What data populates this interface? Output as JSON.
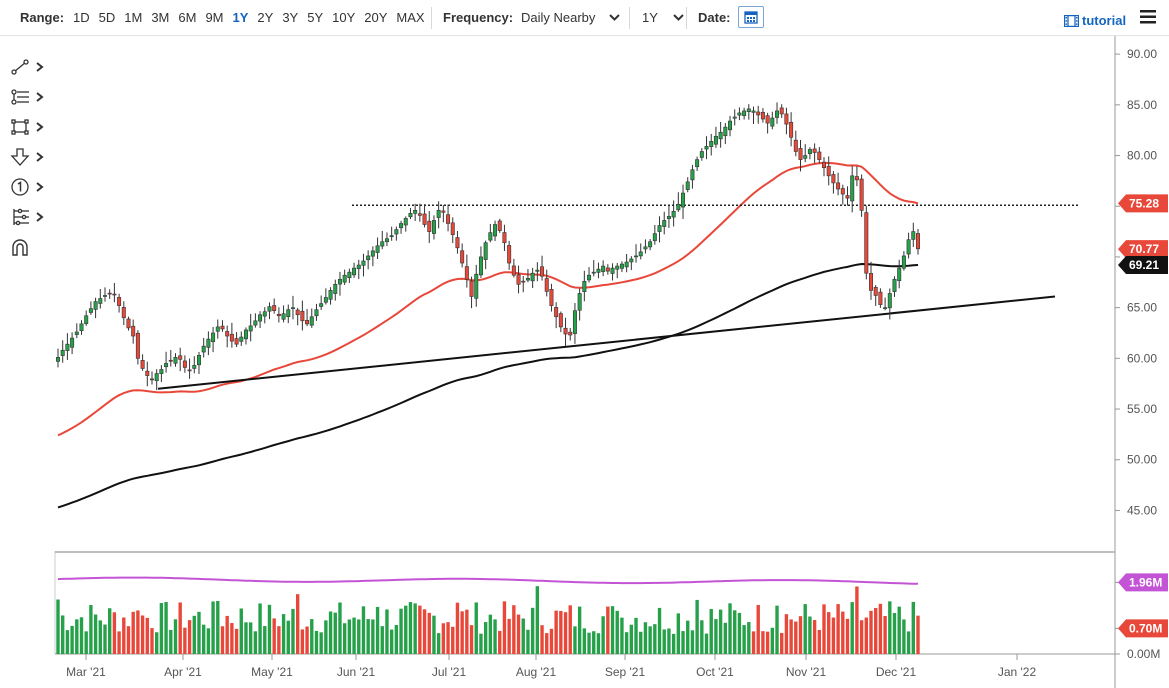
{
  "toolbar": {
    "range_label": "Range:",
    "ranges": [
      "1D",
      "5D",
      "1M",
      "3M",
      "6M",
      "9M",
      "1Y",
      "2Y",
      "3Y",
      "5Y",
      "10Y",
      "20Y",
      "MAX"
    ],
    "active_range": "1Y",
    "frequency_label": "Frequency:",
    "frequency_value": "Daily Nearby",
    "period_value": "1Y",
    "date_label": "Date:",
    "tutorial_label": "tutorial"
  },
  "drawing_tools": [
    {
      "icon": "trendline-icon"
    },
    {
      "icon": "fibonacci-icon"
    },
    {
      "icon": "rectangle-icon"
    },
    {
      "icon": "arrow-down-icon"
    },
    {
      "icon": "annotation-number-icon"
    },
    {
      "icon": "measure-icon"
    },
    {
      "icon": "magnet-icon"
    }
  ],
  "colors": {
    "up": "#26a14a",
    "down": "#e8483a",
    "ma_short": "#e8483a",
    "ma_long": "#111111",
    "volume_ma": "#c454d6",
    "accent": "#1565c0"
  },
  "chart_data": [
    {
      "type": "candlestick",
      "title": "",
      "x_ticks": [
        "Mar '21",
        "Apr '21",
        "May '21",
        "Jun '21",
        "Jul '21",
        "Aug '21",
        "Sep '21",
        "Oct '21",
        "Nov '21",
        "Dec '21",
        "Jan '22"
      ],
      "y_ticks": [
        "90.00",
        "85.00",
        "80.00",
        "75.00",
        "70.00",
        "65.00",
        "60.00",
        "55.00",
        "50.00",
        "45.00"
      ],
      "ylim": [
        41.0,
        91.0
      ],
      "y_axis_position": "right",
      "closes": [
        60.1,
        60.8,
        61.4,
        62.0,
        62.6,
        63.4,
        64.2,
        64.9,
        65.6,
        65.9,
        66.2,
        66.4,
        66.3,
        65.2,
        64.0,
        63.0,
        62.2,
        60.0,
        59.0,
        58.3,
        57.9,
        58.5,
        58.9,
        59.5,
        59.8,
        60.1,
        59.9,
        59.1,
        58.8,
        59.3,
        60.3,
        61.2,
        61.9,
        62.5,
        63.1,
        62.9,
        62.2,
        61.7,
        61.4,
        62.1,
        62.8,
        63.2,
        63.7,
        64.3,
        64.6,
        65.1,
        64.7,
        64.2,
        64.4,
        64.8,
        65.0,
        64.3,
        63.7,
        63.4,
        64.1,
        64.8,
        65.4,
        66.0,
        66.7,
        67.3,
        67.8,
        68.2,
        68.5,
        68.9,
        69.2,
        69.6,
        70.1,
        70.6,
        71.1,
        71.5,
        71.8,
        72.1,
        72.7,
        73.3,
        73.8,
        74.3,
        74.6,
        74.1,
        73.2,
        72.5,
        73.6,
        74.6,
        74.4,
        73.3,
        72.2,
        70.9,
        69.4,
        67.8,
        66.1,
        68.3,
        70.0,
        71.4,
        72.4,
        73.2,
        72.6,
        71.4,
        69.4,
        68.2,
        67.3,
        67.6,
        67.9,
        68.4,
        68.7,
        68.1,
        66.6,
        65.2,
        64.1,
        63.1,
        62.4,
        62.3,
        64.7,
        66.4,
        67.6,
        68.2,
        68.5,
        68.8,
        69.1,
        68.6,
        68.9,
        69.1,
        69.3,
        69.5,
        69.8,
        70.1,
        70.5,
        71.0,
        71.5,
        72.3,
        73.1,
        73.6,
        74.0,
        74.5,
        75.2,
        76.3,
        77.4,
        78.6,
        79.6,
        80.4,
        80.9,
        81.4,
        81.9,
        82.3,
        82.8,
        83.4,
        83.8,
        84.2,
        84.4,
        84.6,
        84.4,
        84.0,
        83.6,
        83.2,
        83.7,
        84.4,
        84.1,
        83.1,
        81.8,
        80.4,
        79.6,
        80.0,
        80.6,
        80.3,
        79.6,
        78.8,
        78.0,
        77.3,
        76.7,
        76.2,
        75.8,
        78.0,
        77.6,
        74.6,
        68.4,
        66.7,
        66.2,
        65.3,
        65.0,
        66.4,
        67.8,
        68.9,
        70.1,
        71.7,
        72.5,
        70.8
      ],
      "overlay_series": [
        {
          "name": "",
          "label": "75.28",
          "start": [
            0,
            52.4
          ],
          "end": [
            186,
            75.28
          ]
        },
        {
          "name": "",
          "label": "69.21",
          "start": [
            0,
            45.3
          ],
          "end": [
            186,
            69.21
          ]
        }
      ],
      "horizontal_lines": [
        {
          "y": 75.1,
          "style": "dotted"
        }
      ],
      "trendlines": [
        {
          "from": [
            "Mar '21",
            57.0
          ],
          "to": [
            "Dec '21",
            66.1
          ]
        }
      ]
    },
    {
      "type": "bar",
      "title": "",
      "y_ticks": [
        "1.96M",
        "0.70M",
        "0.00M"
      ],
      "highlight_labels": [
        "1.96M",
        "0.70M"
      ],
      "volume_values_note": "",
      "ma_start": 2.05,
      "ma_end": 1.96
    }
  ]
}
